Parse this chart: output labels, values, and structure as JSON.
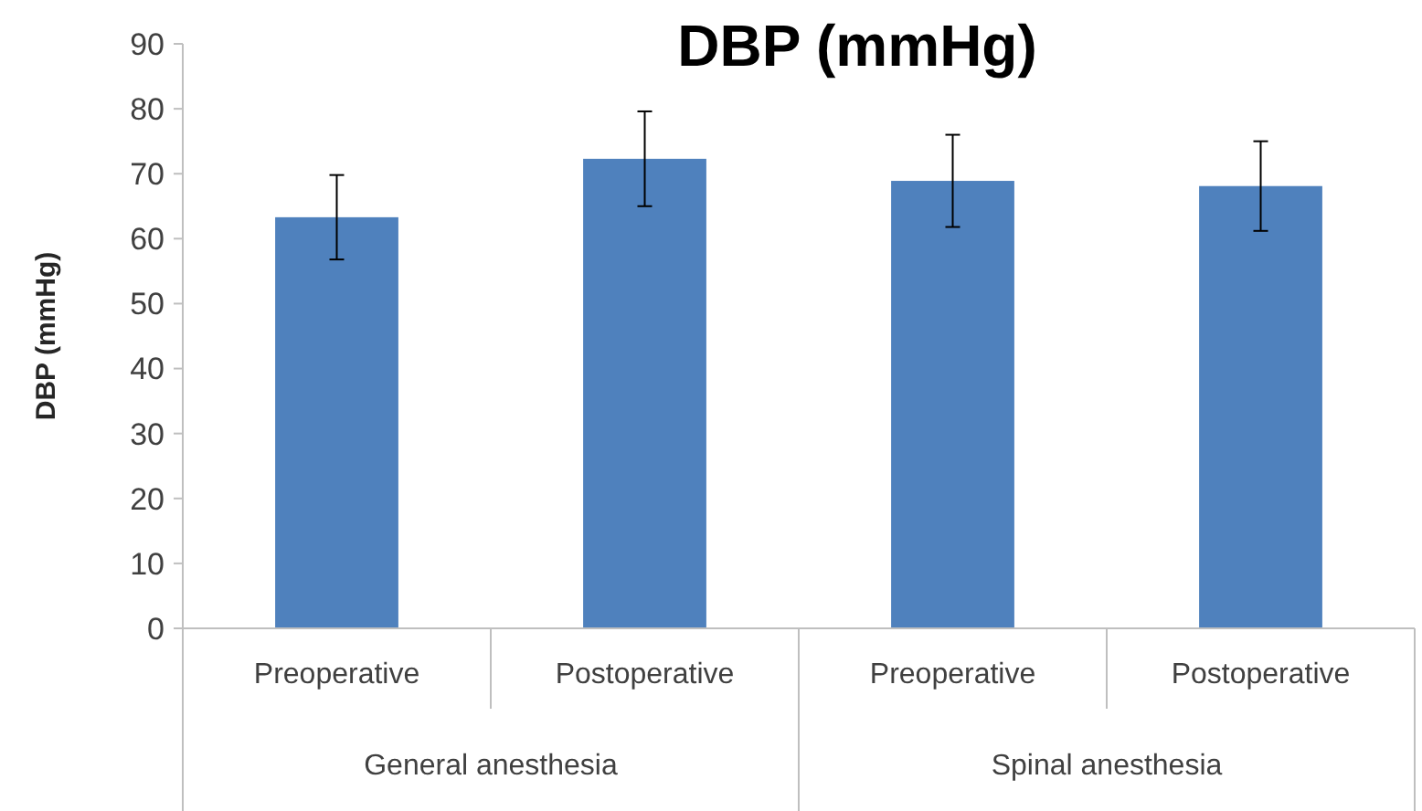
{
  "chart_data": {
    "type": "bar",
    "title": "DBP (mmHg)",
    "ylabel": "DBP (mmHg)",
    "categories": [
      "Preoperative",
      "Postoperative",
      "Preoperative",
      "Postoperative"
    ],
    "series": [
      {
        "color": "#4f81bd",
        "values": [
          63.3,
          72.3,
          68.9,
          68.1
        ],
        "errors": [
          6.5,
          7.3,
          7.1,
          6.9
        ]
      }
    ],
    "ylim": [
      0,
      90
    ],
    "yticks": [
      0,
      10,
      20,
      30,
      40,
      50,
      60,
      70,
      80,
      90
    ],
    "annotations": [
      "General anesthesia",
      "Spinal anesthesia"
    ]
  }
}
